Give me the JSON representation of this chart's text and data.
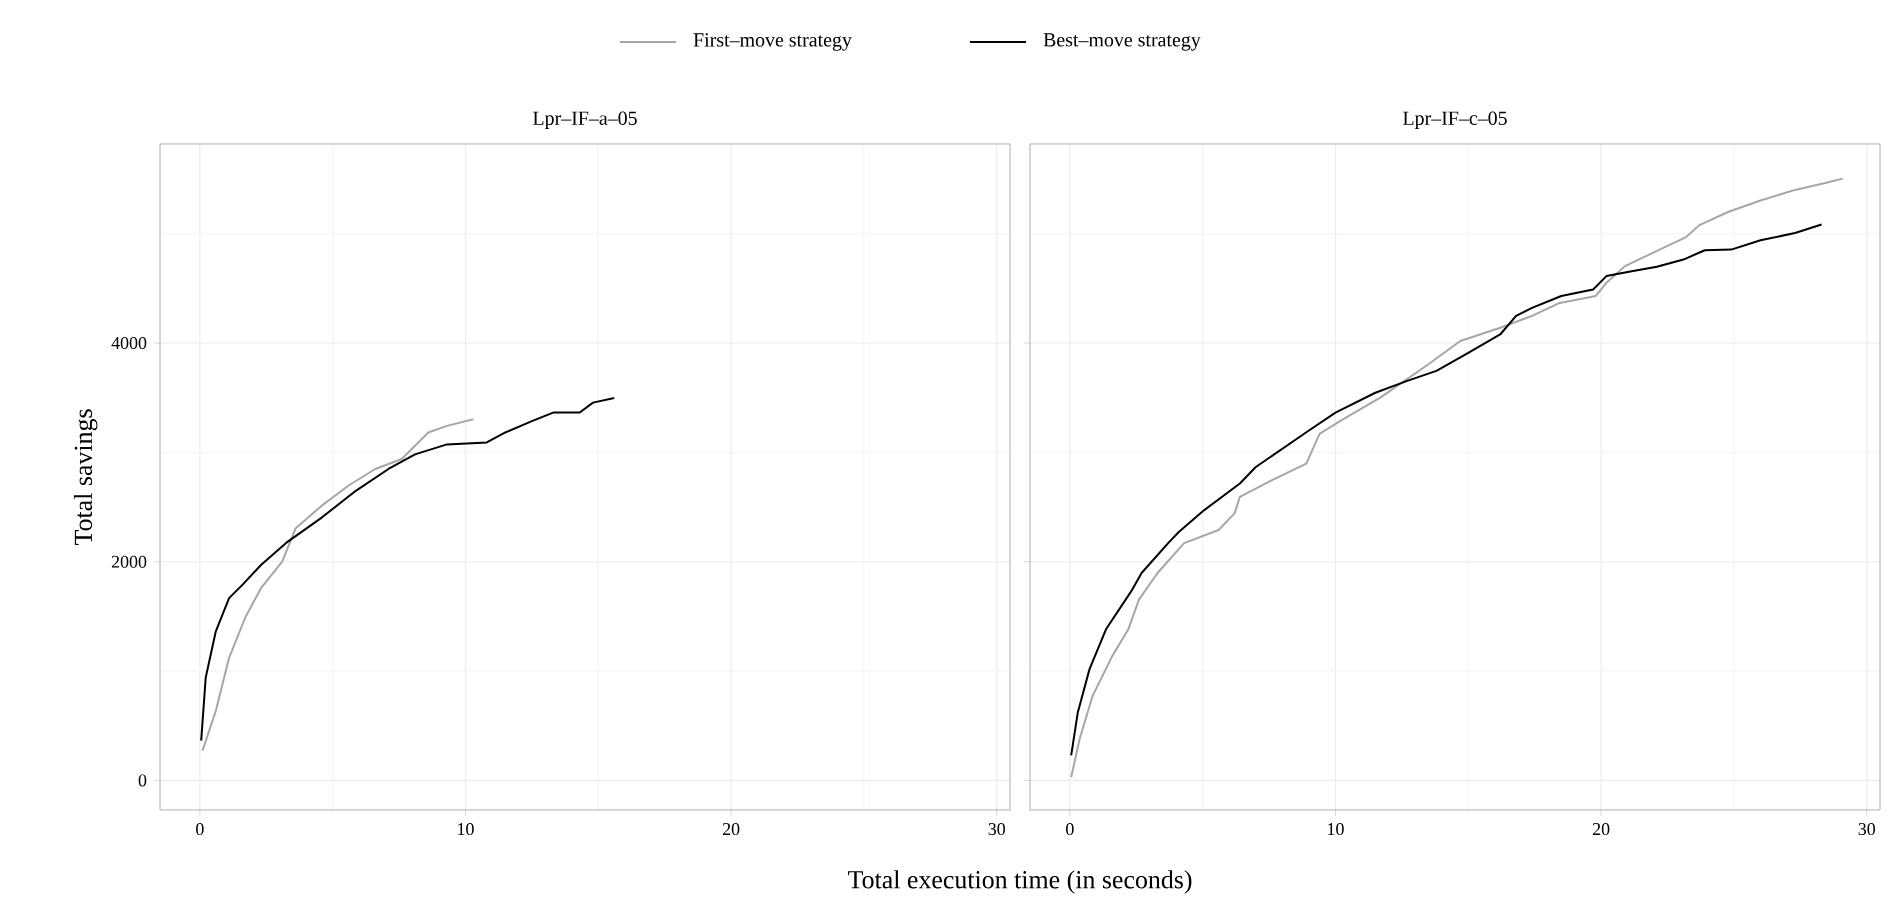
{
  "chart_data": [
    {
      "type": "line",
      "title": "Lpr–IF–a–05",
      "xlabel": "Total execution time (in seconds)",
      "ylabel": "Total savings",
      "legend": "top",
      "grid": true,
      "line_style": "solid",
      "xlim": [
        -1.5,
        30.5
      ],
      "ylim": [
        -270,
        5820
      ],
      "xticks": [
        0,
        10,
        20,
        30
      ],
      "yticks": [
        0,
        2000,
        4000
      ],
      "series": [
        {
          "name": "First–move strategy",
          "color": "#a6a6a6",
          "x": [
            0.1,
            0.6,
            1.1,
            1.7,
            2.3,
            3.1,
            3.6,
            4.6,
            5.6,
            6.6,
            7.6,
            8.6,
            9.3,
            10.3
          ],
          "values": [
            273,
            636,
            1121,
            1485,
            1758,
            2000,
            2303,
            2515,
            2697,
            2848,
            2939,
            3182,
            3242,
            3303
          ]
        },
        {
          "name": "Best–move strategy",
          "color": "#000000",
          "x": [
            0.05,
            0.22,
            0.6,
            1.1,
            1.6,
            2.3,
            3.3,
            4.6,
            5.8,
            7.1,
            8.1,
            9.3,
            10.8,
            11.5,
            12.5,
            13.3,
            14.3,
            14.8,
            15.6
          ],
          "values": [
            364,
            940,
            1364,
            1667,
            1788,
            1970,
            2182,
            2406,
            2636,
            2848,
            2982,
            3073,
            3091,
            3182,
            3285,
            3364,
            3364,
            3455,
            3497
          ]
        }
      ]
    },
    {
      "type": "line",
      "title": "Lpr–IF–c–05",
      "tick_labels": "x",
      "grid": true,
      "line_style": "solid",
      "xlim": [
        -1.5,
        30.5
      ],
      "ylim": [
        -270,
        5820
      ],
      "xticks": [
        0,
        10,
        20,
        30
      ],
      "yticks": [
        0,
        2000,
        4000
      ],
      "series": [
        {
          "color": "#a6a6a6",
          "x": [
            0.05,
            0.37,
            0.86,
            1.6,
            2.2,
            2.6,
            3.3,
            4.3,
            5.6,
            6.2,
            6.4,
            7.5,
            8.9,
            9.4,
            10.2,
            11.7,
            13.5,
            14.7,
            16.2,
            17.4,
            18.4,
            19.8,
            20.2,
            20.9,
            22.3,
            23.2,
            23.7,
            24.8,
            26.0,
            27.3,
            28.4,
            29.1
          ],
          "values": [
            30,
            382,
            776,
            1139,
            1382,
            1654,
            1897,
            2170,
            2290,
            2442,
            2594,
            2733,
            2897,
            3169,
            3290,
            3503,
            3806,
            4018,
            4139,
            4248,
            4363,
            4430,
            4551,
            4703,
            4866,
            4969,
            5078,
            5200,
            5303,
            5400,
            5460,
            5503
          ]
        },
        {
          "color": "#000000",
          "x": [
            0.05,
            0.3,
            0.74,
            1.36,
            2.35,
            2.7,
            3.7,
            4.1,
            5.06,
            6.4,
            7.0,
            9.0,
            10.0,
            11.5,
            12.7,
            13.8,
            14.9,
            16.2,
            16.8,
            17.4,
            18.5,
            19.7,
            20.2,
            21.1,
            22.1,
            23.1,
            23.9,
            24.9,
            26.0,
            27.3,
            28.3
          ],
          "values": [
            230,
            624,
            1018,
            1382,
            1745,
            1897,
            2170,
            2272,
            2472,
            2715,
            2866,
            3200,
            3363,
            3545,
            3654,
            3745,
            3897,
            4078,
            4248,
            4321,
            4430,
            4490,
            4612,
            4654,
            4697,
            4763,
            4848,
            4854,
            4939,
            5006,
            5084
          ]
        }
      ]
    }
  ]
}
